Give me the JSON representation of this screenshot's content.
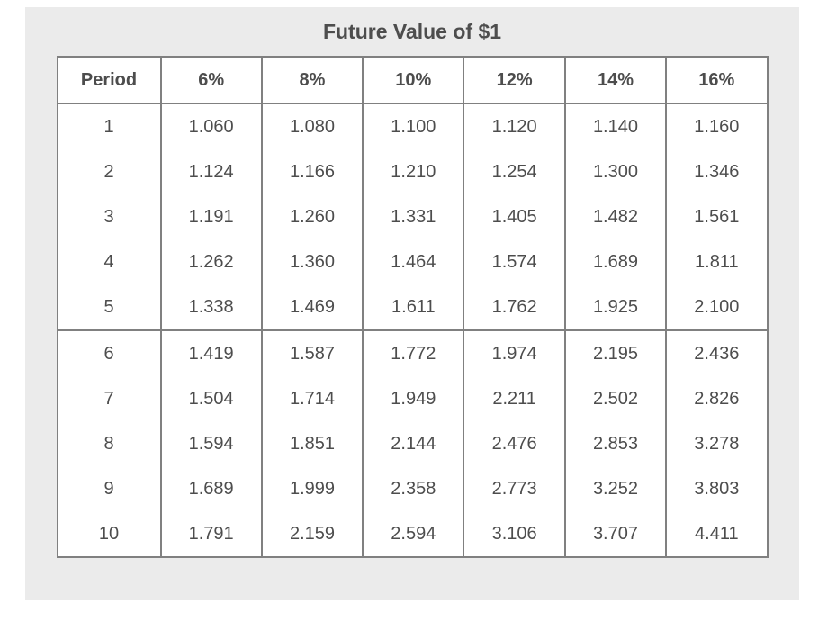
{
  "title": "Future Value of $1",
  "colors": {
    "panel_background": "#ebebeb",
    "table_border": "#808080",
    "text": "#4d4d4d",
    "cell_background": "#ffffff"
  },
  "chart_data": {
    "type": "table",
    "title": "Future Value of $1",
    "columns": [
      "Period",
      "6%",
      "8%",
      "10%",
      "12%",
      "14%",
      "16%"
    ],
    "rows": [
      [
        "1",
        "1.060",
        "1.080",
        "1.100",
        "1.120",
        "1.140",
        "1.160"
      ],
      [
        "2",
        "1.124",
        "1.166",
        "1.210",
        "1.254",
        "1.300",
        "1.346"
      ],
      [
        "3",
        "1.191",
        "1.260",
        "1.331",
        "1.405",
        "1.482",
        "1.561"
      ],
      [
        "4",
        "1.262",
        "1.360",
        "1.464",
        "1.574",
        "1.689",
        "1.811"
      ],
      [
        "5",
        "1.338",
        "1.469",
        "1.611",
        "1.762",
        "1.925",
        "2.100"
      ],
      [
        "6",
        "1.419",
        "1.587",
        "1.772",
        "1.974",
        "2.195",
        "2.436"
      ],
      [
        "7",
        "1.504",
        "1.714",
        "1.949",
        "2.211",
        "2.502",
        "2.826"
      ],
      [
        "8",
        "1.594",
        "1.851",
        "2.144",
        "2.476",
        "2.853",
        "3.278"
      ],
      [
        "9",
        "1.689",
        "1.999",
        "2.358",
        "2.773",
        "3.252",
        "3.803"
      ],
      [
        "10",
        "1.791",
        "2.159",
        "2.594",
        "3.106",
        "3.707",
        "4.411"
      ]
    ],
    "group_separator_after_row": 5,
    "layout": {
      "grid": "vertical lines between all columns; horizontal lines only under header and between period 5 and 6",
      "header_bold": true,
      "text_align": "center"
    }
  }
}
